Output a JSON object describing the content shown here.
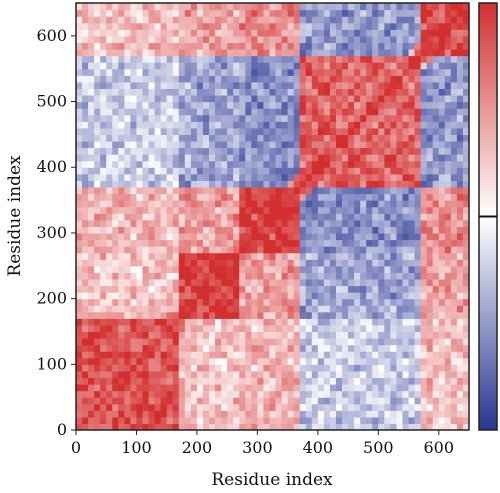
{
  "chart_data": {
    "type": "heatmap",
    "title": "",
    "xlabel": "Residue index",
    "ylabel": "Residue index",
    "xlim": [
      0,
      650
    ],
    "ylim": [
      0,
      650
    ],
    "x_ticks": [
      0,
      100,
      200,
      300,
      400,
      500,
      600
    ],
    "y_ticks": [
      0,
      100,
      200,
      300,
      400,
      500,
      600
    ],
    "colormap": {
      "low": "#283593",
      "mid": "#ffffff",
      "high": "#d32f2f",
      "range": [
        -1,
        1
      ]
    },
    "colorbar": {
      "marked_value": 0,
      "tick_labels": []
    },
    "domains": [
      {
        "start": 0,
        "end": 170
      },
      {
        "start": 170,
        "end": 270
      },
      {
        "start": 270,
        "end": 375
      },
      {
        "start": 375,
        "end": 575
      },
      {
        "start": 575,
        "end": 650
      }
    ],
    "domain_correlation": [
      [
        0.85,
        0.3,
        0.35,
        -0.25,
        0.3
      ],
      [
        0.3,
        0.95,
        0.45,
        -0.45,
        0.45
      ],
      [
        0.35,
        0.45,
        0.95,
        -0.55,
        0.55
      ],
      [
        -0.25,
        -0.45,
        -0.55,
        0.75,
        -0.5
      ],
      [
        0.3,
        0.45,
        0.55,
        -0.5,
        0.9
      ]
    ]
  }
}
